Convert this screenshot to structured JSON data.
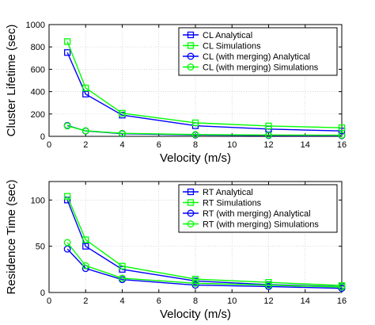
{
  "chart_data": [
    {
      "type": "line",
      "id": "top",
      "xlabel": "Velocity (m/s)",
      "ylabel": "Cluster Lifetime (sec)",
      "xlim": [
        0,
        16
      ],
      "ylim": [
        0,
        1000
      ],
      "xticks": [
        0,
        2,
        4,
        6,
        8,
        10,
        12,
        14,
        16
      ],
      "yticks": [
        0,
        200,
        400,
        600,
        800,
        1000
      ],
      "grid": true,
      "legend_position": "top-right",
      "x": [
        1,
        2,
        4,
        8,
        12,
        16
      ],
      "series": [
        {
          "name": "CL Analytical",
          "color": "#0000ff",
          "marker": "square",
          "values": [
            750,
            378,
            190,
            95,
            65,
            48
          ]
        },
        {
          "name": "CL Simulations",
          "color": "#00ff00",
          "marker": "square",
          "values": [
            848,
            433,
            207,
            121,
            93,
            77
          ]
        },
        {
          "name": "CL (with merging) Analytical",
          "color": "#0000ff",
          "marker": "circle",
          "values": [
            97,
            48,
            24,
            12,
            8,
            6
          ]
        },
        {
          "name": "CL (with merging) Simulations",
          "color": "#00ff00",
          "marker": "circle",
          "values": [
            93,
            50,
            27,
            16,
            12,
            10
          ]
        }
      ]
    },
    {
      "type": "line",
      "id": "bottom",
      "xlabel": "Velocity (m/s)",
      "ylabel": "Residence Time (sec)",
      "xlim": [
        0,
        16
      ],
      "ylim": [
        0,
        120
      ],
      "xticks": [
        0,
        2,
        4,
        6,
        8,
        10,
        12,
        14,
        16
      ],
      "yticks": [
        0,
        50,
        100
      ],
      "grid": true,
      "legend_position": "top-right",
      "x": [
        1,
        2,
        4,
        8,
        12,
        16
      ],
      "series": [
        {
          "name": "RT Analytical",
          "color": "#0000ff",
          "marker": "square",
          "values": [
            100,
            50,
            25,
            12.5,
            8.5,
            6.3
          ]
        },
        {
          "name": "RT Simulations",
          "color": "#00ff00",
          "marker": "square",
          "values": [
            104,
            57,
            28.5,
            14.5,
            11,
            7.5
          ]
        },
        {
          "name": "RT (with merging) Analytical",
          "color": "#0000ff",
          "marker": "circle",
          "values": [
            47,
            26,
            14,
            8,
            6.5,
            4.5
          ]
        },
        {
          "name": "RT (with merging) Simulations",
          "color": "#00ff00",
          "marker": "circle",
          "values": [
            54,
            29,
            15.5,
            10,
            8,
            6
          ]
        }
      ]
    }
  ]
}
